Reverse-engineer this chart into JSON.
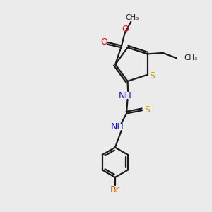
{
  "bg_color": "#ebebeb",
  "bond_color": "#1a1a1a",
  "S_color": "#b8a000",
  "N_color": "#1414cc",
  "O_color": "#cc1414",
  "Br_color": "#cc6600",
  "linewidth": 1.6,
  "figsize": [
    3.0,
    3.0
  ],
  "dpi": 100,
  "xlim": [
    0,
    10
  ],
  "ylim": [
    0,
    10
  ]
}
